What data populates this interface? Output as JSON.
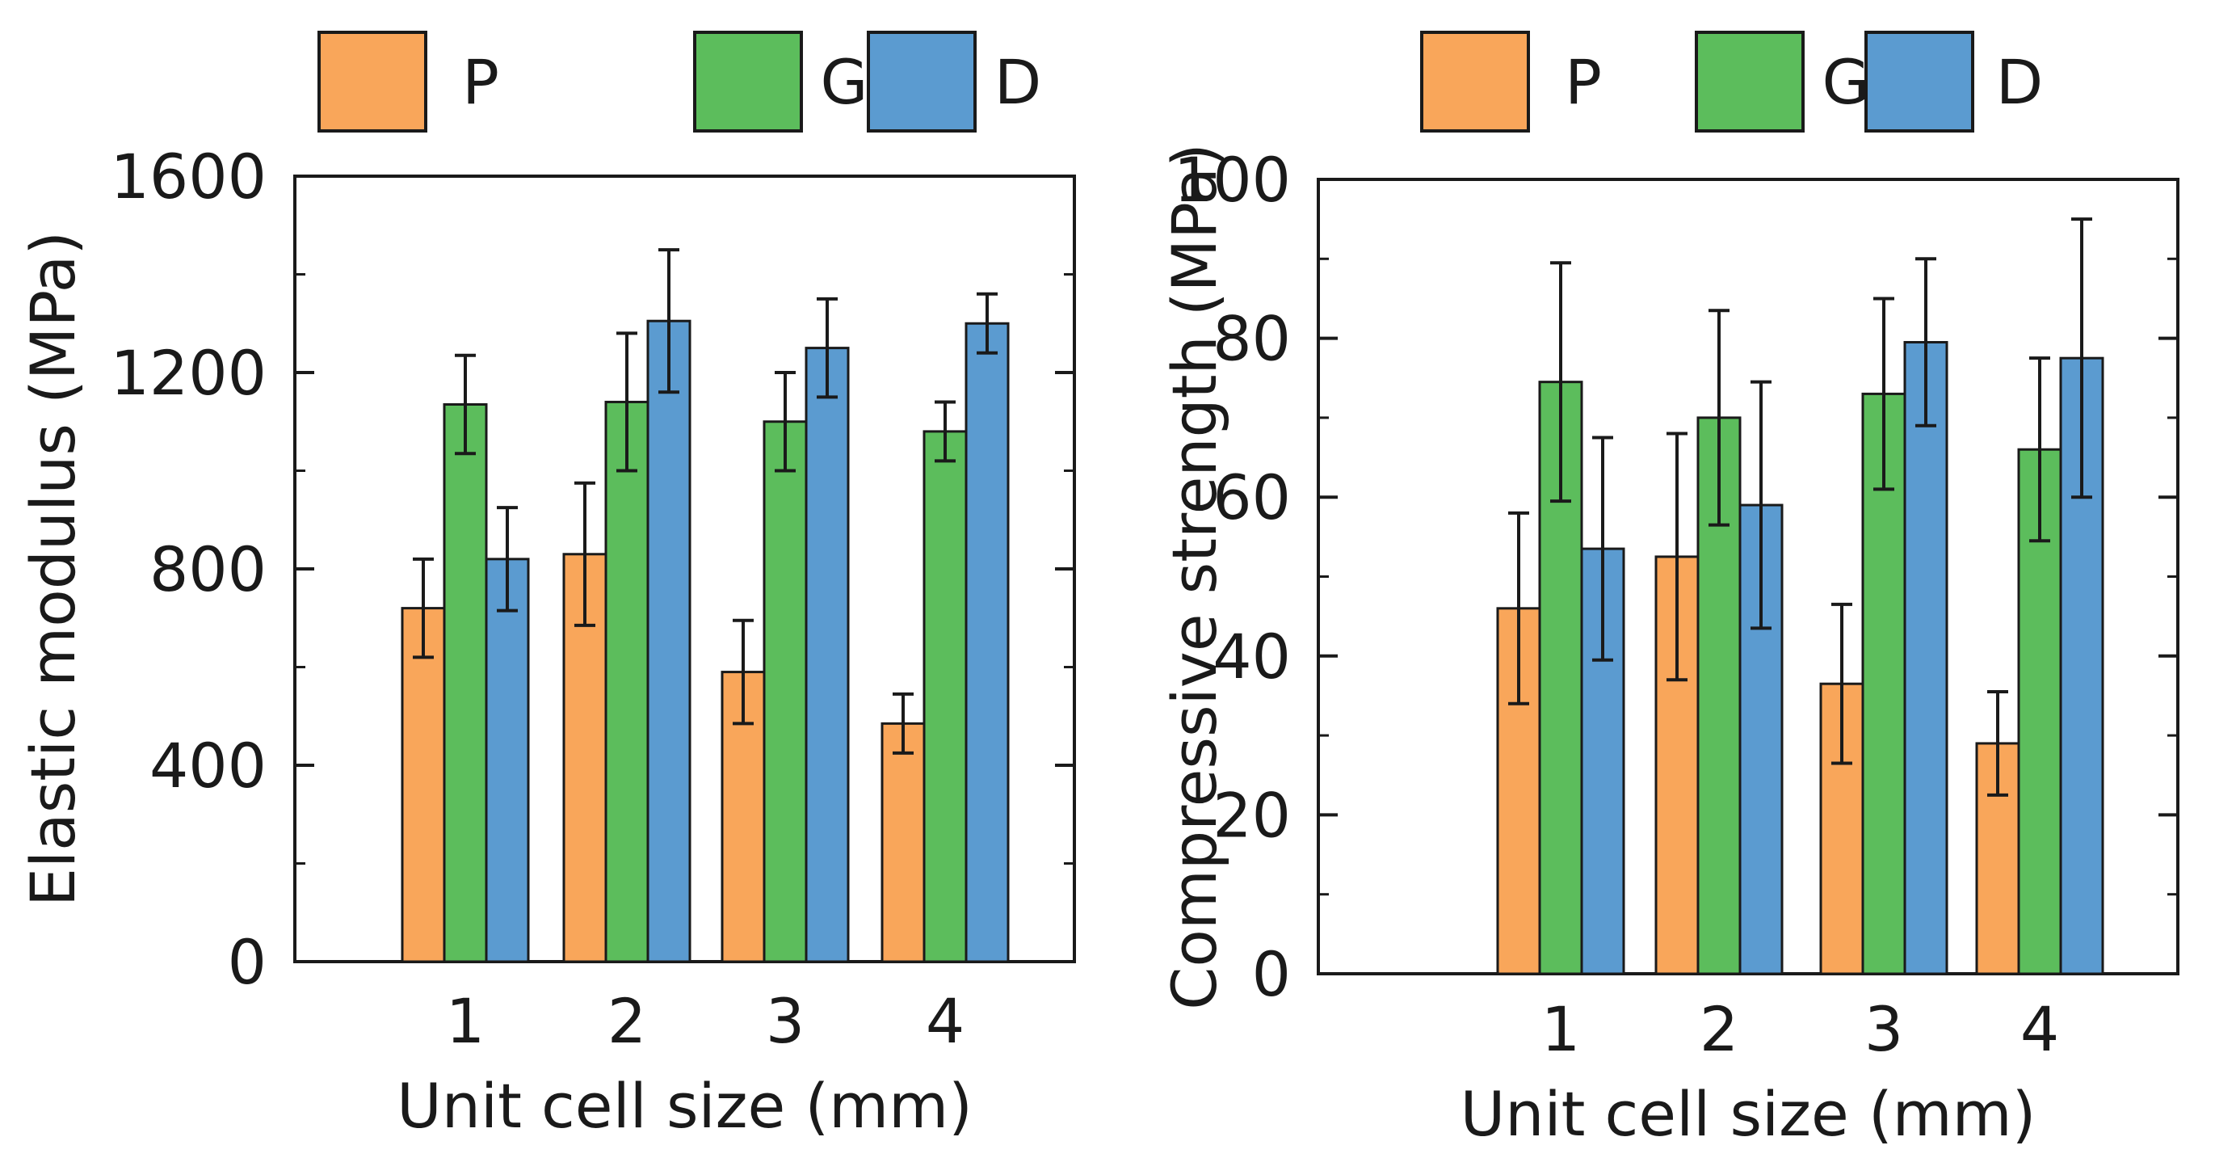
{
  "chart_data": [
    {
      "type": "bar",
      "title": "",
      "xlabel": "Unit cell size (mm)",
      "ylabel": "Elastic modulus (MPa)",
      "categories": [
        "1",
        "2",
        "3",
        "4"
      ],
      "ylim": [
        0,
        1600
      ],
      "yticks": [
        "0",
        "400",
        "800",
        "1200",
        "1600"
      ],
      "legend_position": "top",
      "grid": false,
      "series": [
        {
          "name": "P",
          "color": "#f9a65a",
          "values": [
            720,
            830,
            590,
            485
          ],
          "errors": [
            100,
            145,
            105,
            60
          ]
        },
        {
          "name": "G",
          "color": "#5cbd5c",
          "values": [
            1135,
            1140,
            1100,
            1080
          ],
          "errors": [
            100,
            140,
            100,
            60
          ]
        },
        {
          "name": "D",
          "color": "#5b9bd0",
          "values": [
            820,
            1305,
            1250,
            1300
          ],
          "errors": [
            105,
            145,
            100,
            60
          ]
        }
      ]
    },
    {
      "type": "bar",
      "title": "",
      "xlabel": "Unit cell size (mm)",
      "ylabel": "Compressive strength (MPa)",
      "categories": [
        "1",
        "2",
        "3",
        "4"
      ],
      "ylim": [
        0,
        100
      ],
      "yticks": [
        "0",
        "20",
        "40",
        "60",
        "80",
        "100"
      ],
      "legend_position": "top",
      "grid": false,
      "series": [
        {
          "name": "P",
          "color": "#f9a65a",
          "values": [
            46,
            52.5,
            36.5,
            29
          ],
          "errors": [
            12,
            15.5,
            10,
            6.5
          ]
        },
        {
          "name": "G",
          "color": "#5cbd5c",
          "values": [
            74.5,
            70,
            73,
            66
          ],
          "errors": [
            15,
            13.5,
            12,
            11.5
          ]
        },
        {
          "name": "D",
          "color": "#5b9bd0",
          "values": [
            53.5,
            59,
            79.5,
            77.5
          ],
          "errors": [
            14,
            15.5,
            10.5,
            17.5
          ]
        }
      ]
    }
  ]
}
